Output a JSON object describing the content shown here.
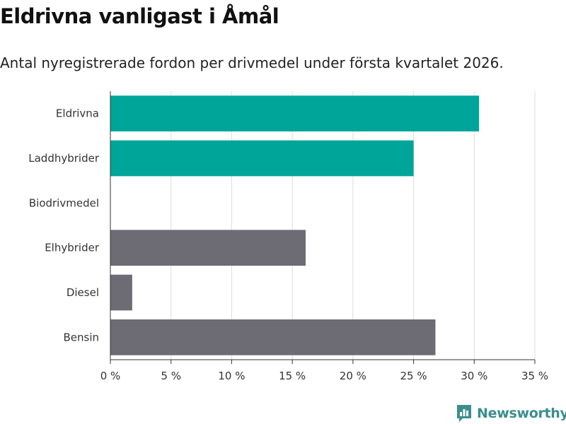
{
  "brand": {
    "name": "Newsworthy",
    "color": "#3a8f8c"
  },
  "colors": {
    "highlight": "#00a59a",
    "neutral": "#6d6c74",
    "grid": "#dddddd",
    "axis": "#333333",
    "text": "#333333"
  },
  "chart_data": {
    "type": "bar",
    "orientation": "horizontal",
    "title": "Eldrivna vanligast i Åmål",
    "subtitle": "Antal nyregistrerade fordon per drivmedel under första kvartalet 2026.",
    "xlabel": "",
    "ylabel": "",
    "categories": [
      "Eldrivna",
      "Laddhybrider",
      "Biodrivmedel",
      "Elhybrider",
      "Diesel",
      "Bensin"
    ],
    "values": [
      30.4,
      25.0,
      0,
      16.1,
      1.8,
      26.8
    ],
    "highlight": [
      true,
      true,
      false,
      false,
      false,
      false
    ],
    "xlim": [
      0,
      35
    ],
    "xticks": [
      0,
      5,
      10,
      15,
      20,
      25,
      30,
      35
    ],
    "tick_suffix": " %",
    "grid": true,
    "legend": "none"
  }
}
